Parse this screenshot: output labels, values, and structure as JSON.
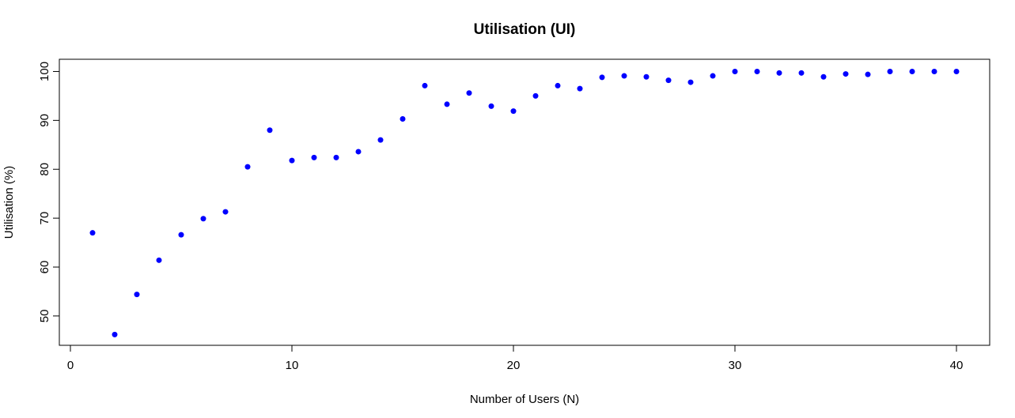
{
  "chart_data": {
    "type": "scatter",
    "title": "Utilisation (UI)",
    "xlabel": "Number of Users (N)",
    "ylabel": "Utilisation (%)",
    "xlim": [
      -0.5,
      41.5
    ],
    "ylim": [
      44.0,
      102.5
    ],
    "xticks": [
      0,
      10,
      20,
      30,
      40
    ],
    "yticks": [
      50,
      60,
      70,
      80,
      90,
      100
    ],
    "xtick_labels": [
      "0",
      "10",
      "20",
      "30",
      "40"
    ],
    "ytick_labels": [
      "50",
      "60",
      "70",
      "80",
      "90",
      "100"
    ],
    "grid": false,
    "point_color": "#0000ff",
    "series": [
      {
        "name": "Utilisation",
        "x": [
          1,
          2,
          3,
          4,
          5,
          6,
          7,
          8,
          9,
          10,
          11,
          12,
          13,
          14,
          15,
          16,
          17,
          18,
          19,
          20,
          21,
          22,
          23,
          24,
          25,
          26,
          27,
          28,
          29,
          30,
          31,
          32,
          33,
          34,
          35,
          36,
          37,
          38,
          39,
          40
        ],
        "y": [
          67.0,
          46.2,
          54.4,
          61.4,
          66.6,
          69.9,
          71.3,
          80.5,
          88.0,
          81.8,
          82.4,
          82.4,
          83.6,
          86.0,
          90.3,
          97.1,
          93.3,
          95.6,
          92.9,
          91.9,
          95.0,
          97.1,
          96.5,
          98.8,
          99.1,
          98.9,
          98.2,
          97.8,
          99.1,
          100.0,
          100.0,
          99.7,
          99.7,
          98.9,
          99.5,
          99.4,
          100.0,
          100.0,
          100.0,
          100.0
        ]
      }
    ]
  }
}
